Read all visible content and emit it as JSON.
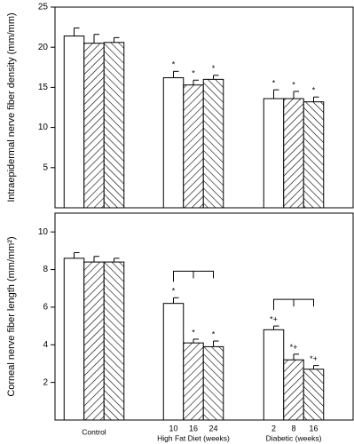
{
  "chart_data": [
    {
      "type": "bar",
      "ylabel": "Intraepidermal nerve fiber density (mm/mm)",
      "categories": [
        "Control",
        "High Fat Diet (weeks)",
        "Diabetic (weeks)"
      ],
      "series": [
        {
          "color": "#ffffff",
          "hatch": "none",
          "values": [
            21.4,
            16.2,
            13.6
          ],
          "errors": [
            1.0,
            0.8,
            1.1
          ]
        },
        {
          "color": "#ffffff",
          "hatch": "forward",
          "values": [
            20.5,
            15.3,
            13.6
          ],
          "errors": [
            1.1,
            0.6,
            0.9
          ]
        },
        {
          "color": "#ffffff",
          "hatch": "backward",
          "values": [
            20.6,
            16.0,
            13.2
          ],
          "errors": [
            0.6,
            0.5,
            0.6
          ]
        }
      ],
      "annotations": [
        [
          null,
          null,
          null
        ],
        [
          "*",
          "*",
          "*"
        ],
        [
          "*",
          "*",
          "*"
        ]
      ],
      "ylim": [
        0,
        25
      ],
      "yticks": [
        5,
        10,
        15,
        20,
        25
      ]
    },
    {
      "type": "bar",
      "ylabel": "Corneal nerve fiber length (mm/mm²)",
      "categories": [
        "Control",
        "High Fat Diet (weeks)",
        "Diabetic (weeks)"
      ],
      "bar_labels": [
        [
          null,
          null,
          null
        ],
        [
          10,
          16,
          24
        ],
        [
          2,
          8,
          16
        ]
      ],
      "series": [
        {
          "color": "#ffffff",
          "hatch": "none",
          "values": [
            8.6,
            6.2,
            4.8
          ],
          "errors": [
            0.3,
            0.3,
            0.2
          ]
        },
        {
          "color": "#ffffff",
          "hatch": "forward",
          "values": [
            8.4,
            4.1,
            3.2
          ],
          "errors": [
            0.3,
            0.2,
            0.3
          ]
        },
        {
          "color": "#ffffff",
          "hatch": "backward",
          "values": [
            8.4,
            3.9,
            2.7
          ],
          "errors": [
            0.2,
            0.3,
            0.2
          ]
        }
      ],
      "annotations": [
        [
          null,
          null,
          null
        ],
        [
          "*",
          "*",
          "*"
        ],
        [
          "*+",
          "*+",
          "*+"
        ]
      ],
      "brackets": [
        1,
        2
      ],
      "ylim": [
        0,
        11
      ],
      "yticks": [
        2,
        4,
        6,
        8,
        10
      ]
    }
  ]
}
